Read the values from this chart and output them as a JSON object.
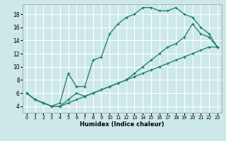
{
  "xlabel": "Humidex (Indice chaleur)",
  "xlim": [
    -0.5,
    23.5
  ],
  "ylim": [
    3.0,
    19.5
  ],
  "xticks": [
    0,
    1,
    2,
    3,
    4,
    5,
    6,
    7,
    8,
    9,
    10,
    11,
    12,
    13,
    14,
    15,
    16,
    17,
    18,
    19,
    20,
    21,
    22,
    23
  ],
  "yticks": [
    4,
    6,
    8,
    10,
    12,
    14,
    16,
    18
  ],
  "bg_color": "#cce8e8",
  "grid_color": "#ffffff",
  "line_color": "#1a7a6e",
  "line1_x": [
    0,
    1,
    2,
    3,
    4,
    5,
    6,
    7,
    8,
    9,
    10,
    11,
    12,
    13,
    14,
    15,
    16,
    17,
    18,
    19,
    20,
    21,
    22,
    23
  ],
  "line1_y": [
    6,
    5,
    4.5,
    4,
    4.5,
    9,
    7,
    7,
    11,
    11.5,
    15,
    16.5,
    17.5,
    18,
    19,
    19,
    18.5,
    18.5,
    19,
    18,
    17.5,
    16,
    15,
    13
  ],
  "line2_x": [
    0,
    1,
    2,
    3,
    4,
    5,
    6,
    7,
    8,
    9,
    10,
    11,
    12,
    13,
    14,
    15,
    16,
    17,
    18,
    19,
    20,
    21,
    22,
    23
  ],
  "line2_y": [
    6,
    5,
    4.5,
    4,
    4,
    4.5,
    5,
    5.5,
    6,
    6.5,
    7,
    7.5,
    8,
    8.5,
    9,
    9.5,
    10,
    10.5,
    11,
    11.5,
    12,
    12.5,
    13,
    13
  ],
  "line3_x": [
    0,
    1,
    2,
    3,
    4,
    5,
    6,
    7,
    8,
    9,
    10,
    11,
    12,
    13,
    14,
    15,
    16,
    17,
    18,
    19,
    20,
    21,
    22,
    23
  ],
  "line3_y": [
    6,
    5,
    4.5,
    4,
    4,
    5,
    6,
    5.5,
    6,
    6.5,
    7,
    7.5,
    8,
    9,
    10,
    11,
    12,
    13,
    13.5,
    14.5,
    16.5,
    15,
    14.5,
    13
  ]
}
